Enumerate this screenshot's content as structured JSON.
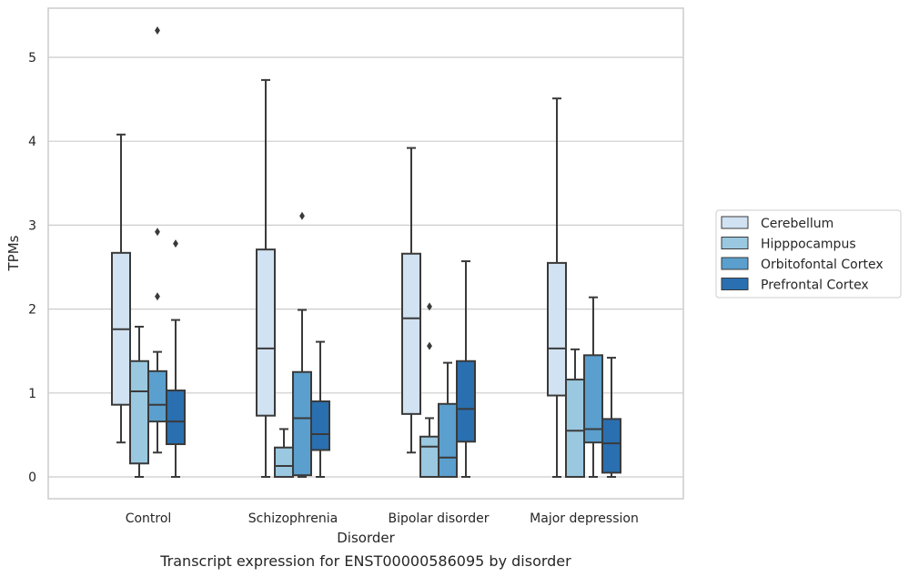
{
  "chart_data": {
    "type": "box",
    "title": "",
    "caption": "Transcript expression for ENST00000586095 by disorder",
    "xlabel": "Disorder",
    "ylabel": "TPMs",
    "ylim": [
      -0.25,
      5.6
    ],
    "yticks": [
      "0",
      "1",
      "2",
      "3",
      "4",
      "5"
    ],
    "grid": "horizontal",
    "legend_position": "right",
    "categories": [
      "Control",
      "Schizophrenia",
      "Bipolar disorder",
      "Major depression"
    ],
    "series": [
      {
        "name": "Cerebellum",
        "color": "#d1e2f2",
        "boxes": [
          {
            "low": 0.41,
            "q1": 0.86,
            "median": 1.76,
            "q3": 2.67,
            "high": 4.08,
            "outliers": []
          },
          {
            "low": 0.0,
            "q1": 0.73,
            "median": 1.53,
            "q3": 2.71,
            "high": 4.73,
            "outliers": []
          },
          {
            "low": 0.29,
            "q1": 0.75,
            "median": 1.89,
            "q3": 2.66,
            "high": 3.92,
            "outliers": []
          },
          {
            "low": 0.0,
            "q1": 0.97,
            "median": 1.53,
            "q3": 2.55,
            "high": 4.51,
            "outliers": []
          }
        ]
      },
      {
        "name": "Hipppocampus",
        "color": "#9ac8e0",
        "boxes": [
          {
            "low": 0.0,
            "q1": 0.16,
            "median": 1.02,
            "q3": 1.38,
            "high": 1.79,
            "outliers": []
          },
          {
            "low": 0.0,
            "q1": 0.0,
            "median": 0.13,
            "q3": 0.35,
            "high": 0.57,
            "outliers": []
          },
          {
            "low": 0.0,
            "q1": 0.0,
            "median": 0.36,
            "q3": 0.48,
            "high": 0.7,
            "outliers": []
          },
          {
            "low": 0.0,
            "q1": 0.0,
            "median": 0.55,
            "q3": 1.16,
            "high": 1.52,
            "outliers": []
          }
        ]
      },
      {
        "name": "Orbitofontal Cortex",
        "color": "#5a9fcd",
        "boxes": [
          {
            "low": 0.29,
            "q1": 0.66,
            "median": 0.86,
            "q3": 1.26,
            "high": 1.49,
            "outliers": [
              2.15,
              2.92,
              5.32
            ]
          },
          {
            "low": 0.0,
            "q1": 0.02,
            "median": 0.7,
            "q3": 1.25,
            "high": 1.99,
            "outliers": [
              3.11
            ]
          },
          {
            "low": 0.0,
            "q1": 0.0,
            "median": 0.23,
            "q3": 0.87,
            "high": 1.36,
            "outliers": []
          },
          {
            "low": 0.0,
            "q1": 0.41,
            "median": 0.57,
            "q3": 1.45,
            "high": 2.14,
            "outliers": []
          }
        ]
      },
      {
        "name": "Prefrontal Cortex",
        "color": "#2a6fb0",
        "boxes": [
          {
            "low": 0.0,
            "q1": 0.39,
            "median": 0.66,
            "q3": 1.03,
            "high": 1.87,
            "outliers": [
              2.78
            ]
          },
          {
            "low": 0.0,
            "q1": 0.32,
            "median": 0.51,
            "q3": 0.9,
            "high": 1.61,
            "outliers": []
          },
          {
            "low": 0.0,
            "q1": 0.42,
            "median": 0.81,
            "q3": 1.38,
            "high": 2.57,
            "outliers": []
          },
          {
            "low": 0.0,
            "q1": 0.05,
            "median": 0.4,
            "q3": 0.69,
            "high": 1.42,
            "outliers": []
          }
        ]
      }
    ],
    "bipolar_extra_outliers": {
      "series": "Cerebellum",
      "values": [
        1.56,
        2.03
      ]
    }
  }
}
